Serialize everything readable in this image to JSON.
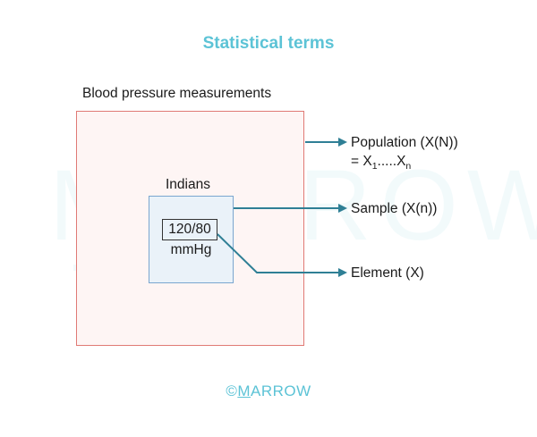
{
  "title": "Statistical terms",
  "watermark_text": "MARROW",
  "outer_label": "Blood pressure measurements",
  "inner_label": "Indians",
  "element_value": "120/80",
  "element_unit": "mmHg",
  "population": {
    "label": "Population (X(N))",
    "formula_prefix": "= X",
    "formula_sub1": "1",
    "formula_mid": ".....X",
    "formula_subn": "n"
  },
  "sample_label": "Sample (X(n))",
  "element_label": "Element (X)",
  "footer": {
    "copyright": "©",
    "brand_initial": "M",
    "brand_rest": "ARROW"
  },
  "colors": {
    "accent": "#5cc3d6",
    "arrow": "#2f7f95",
    "outer_border": "#e07a75",
    "inner_border": "#7aa6cf"
  }
}
